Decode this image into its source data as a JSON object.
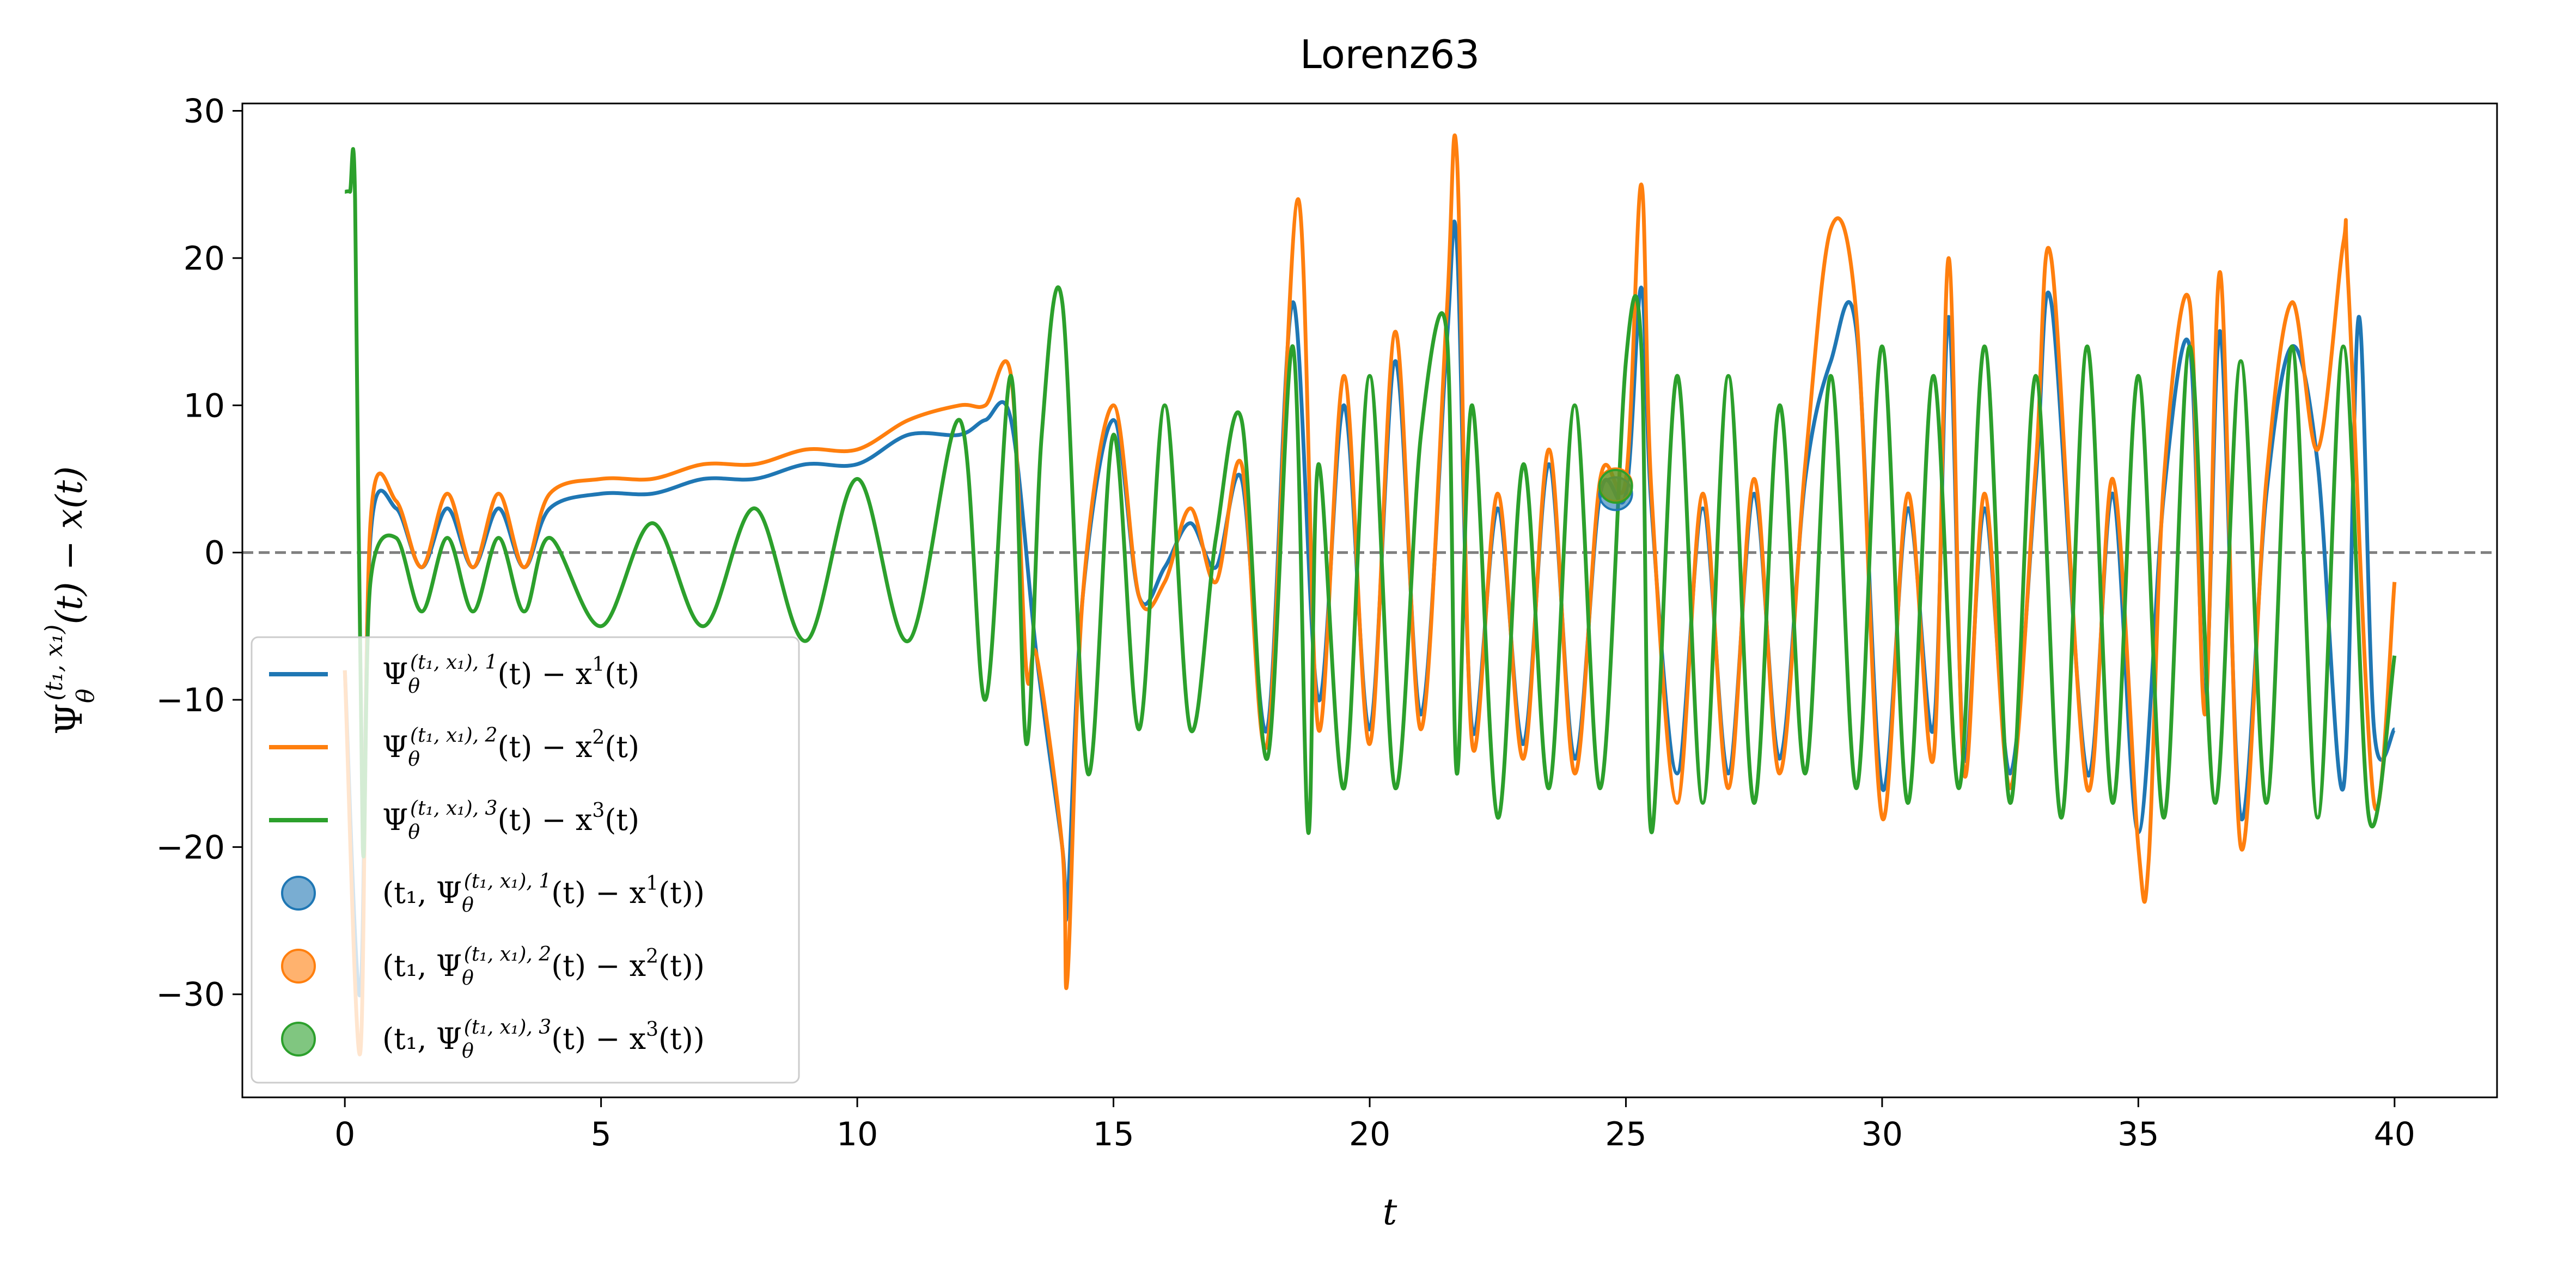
{
  "chart_data": {
    "type": "line",
    "title": "Lorenz63",
    "xlabel": "t",
    "ylabel_parts": {
      "base": "Ψ",
      "sub": "θ",
      "sup": "(t₁, x₁)",
      "rest": "(t) − x(t)"
    },
    "xlim": [
      -2.0,
      42.0
    ],
    "ylim": [
      -37.0,
      30.5
    ],
    "x_ticks": [
      0,
      5,
      10,
      15,
      20,
      25,
      30,
      35,
      40
    ],
    "y_ticks": [
      -30,
      -20,
      -10,
      0,
      10,
      20,
      30
    ],
    "x_tick_labels": [
      "0",
      "5",
      "10",
      "15",
      "20",
      "25",
      "30",
      "35",
      "40"
    ],
    "y_tick_labels": [
      "−30",
      "−20",
      "−10",
      "0",
      "10",
      "20",
      "30"
    ],
    "grid": false,
    "reference_line": {
      "y": 0,
      "style": "dashed",
      "color": "#808080"
    },
    "legend_position": "lower-left",
    "colors": {
      "series1": "#1f77b4",
      "series2": "#ff7f0e",
      "series3": "#2ca02c"
    },
    "series": [
      {
        "name": "Ψθ^{(t1,x1),1}(t) − x¹(t)",
        "color": "#1f77b4",
        "x": [
          0.0,
          0.3,
          0.5,
          1.0,
          1.5,
          2.0,
          2.5,
          3.0,
          3.5,
          4.0,
          5.0,
          6.0,
          7.0,
          8.0,
          9.0,
          10.0,
          11.0,
          12.0,
          12.5,
          13.0,
          13.5,
          14.0,
          14.1,
          14.4,
          15.0,
          15.5,
          16.0,
          16.5,
          17.0,
          17.5,
          18.0,
          18.5,
          19.0,
          19.5,
          20.0,
          20.5,
          21.0,
          21.5,
          21.7,
          22.0,
          22.5,
          23.0,
          23.5,
          24.0,
          24.5,
          25.0,
          25.3,
          25.5,
          26.0,
          26.5,
          27.0,
          27.5,
          28.0,
          28.5,
          29.0,
          29.5,
          30.0,
          30.5,
          31.0,
          31.3,
          31.6,
          32.0,
          32.5,
          33.0,
          33.3,
          34.0,
          34.5,
          35.0,
          35.5,
          36.0,
          36.3,
          36.6,
          37.0,
          37.5,
          38.0,
          38.5,
          39.0,
          39.3,
          39.6,
          40.0
        ],
        "y": [
          -8,
          -30,
          1,
          3,
          -1,
          3,
          -1,
          3,
          -1,
          3,
          4,
          4,
          5,
          5,
          6,
          6,
          8,
          8,
          9,
          9,
          -7,
          -20,
          -24,
          -3,
          9,
          -3,
          -1,
          2,
          -1,
          5,
          -12,
          17,
          -10,
          10,
          -12,
          13,
          -11,
          14,
          21,
          -12,
          3,
          -13,
          6,
          -14,
          4,
          4,
          18,
          3,
          -15,
          3,
          -15,
          4,
          -14,
          5,
          13,
          15,
          -16,
          3,
          -12,
          16,
          -14,
          3,
          -15,
          5,
          17,
          -15,
          4,
          -19,
          4,
          14,
          -10,
          15,
          -18,
          4,
          14,
          6,
          -16,
          16,
          -12,
          -12
        ]
      },
      {
        "name": "Ψθ^{(t1,x1),2}(t) − x²(t)",
        "color": "#ff7f0e",
        "x": [
          0.0,
          0.3,
          0.5,
          1.0,
          1.5,
          2.0,
          2.5,
          3.0,
          3.5,
          4.0,
          5.0,
          6.0,
          7.0,
          8.0,
          9.0,
          10.0,
          11.0,
          12.0,
          12.5,
          13.0,
          13.3,
          13.5,
          14.0,
          14.1,
          14.4,
          15.0,
          15.5,
          16.0,
          16.5,
          17.0,
          17.5,
          18.0,
          18.6,
          19.0,
          19.5,
          20.0,
          20.5,
          21.0,
          21.5,
          21.7,
          22.0,
          22.5,
          23.0,
          23.5,
          24.0,
          24.5,
          25.0,
          25.3,
          25.5,
          26.0,
          26.5,
          27.0,
          27.5,
          28.0,
          28.5,
          29.0,
          29.5,
          30.0,
          30.5,
          31.0,
          31.3,
          31.6,
          32.0,
          32.5,
          33.0,
          33.3,
          34.0,
          34.5,
          35.0,
          35.2,
          35.5,
          36.0,
          36.3,
          36.6,
          37.0,
          37.5,
          38.0,
          38.5,
          39.0,
          39.1,
          39.6,
          40.0
        ],
        "y": [
          -8,
          -34,
          2,
          3.5,
          -1,
          4,
          -1,
          4,
          -1,
          4,
          5,
          5,
          6,
          6,
          7,
          7,
          9,
          10,
          10,
          12,
          -8,
          -7,
          -20,
          -29,
          -3,
          10,
          -3,
          -2,
          3,
          -2,
          6,
          -13,
          24,
          -12,
          12,
          -13,
          15,
          -12,
          16,
          27,
          -13,
          4,
          -14,
          7,
          -15,
          5,
          5,
          25,
          4,
          -17,
          4,
          -16,
          5,
          -15,
          6,
          22,
          16,
          -18,
          4,
          -14,
          20,
          -15,
          4,
          -16,
          6,
          20,
          -16,
          5,
          -20,
          -21,
          5,
          17,
          -11,
          19,
          -20,
          5,
          17,
          7,
          21,
          18,
          -17,
          -2
        ]
      },
      {
        "name": "Ψθ^{(t1,x1),3}(t) − x³(t)",
        "color": "#2ca02c",
        "x": [
          0.0,
          0.1,
          0.2,
          0.35,
          0.5,
          1.0,
          1.5,
          2.0,
          2.5,
          3.0,
          3.5,
          4.0,
          5.0,
          6.0,
          7.0,
          8.0,
          9.0,
          10.0,
          11.0,
          12.0,
          12.5,
          13.0,
          13.3,
          13.6,
          14.0,
          14.5,
          15.0,
          15.5,
          16.0,
          16.5,
          17.0,
          17.5,
          18.0,
          18.5,
          18.8,
          19.0,
          19.5,
          20.0,
          20.5,
          21.0,
          21.5,
          21.7,
          22.0,
          22.5,
          23.0,
          23.5,
          24.0,
          24.5,
          25.0,
          25.3,
          25.5,
          26.0,
          26.5,
          27.0,
          27.5,
          28.0,
          28.5,
          29.0,
          29.5,
          30.0,
          30.5,
          31.0,
          31.5,
          32.0,
          32.5,
          33.0,
          33.5,
          34.0,
          34.5,
          35.0,
          35.5,
          36.0,
          36.5,
          37.0,
          37.5,
          38.0,
          38.5,
          39.0,
          39.5,
          40.0
        ],
        "y": [
          24.5,
          24.5,
          24,
          -20,
          -2,
          1,
          -4,
          1,
          -4,
          1,
          -4,
          1,
          -5,
          2,
          -5,
          3,
          -6,
          5,
          -6,
          9,
          -10,
          12,
          -13,
          8,
          17,
          -15,
          8,
          -12,
          10,
          -12,
          1,
          9,
          -14,
          14,
          -19,
          6,
          -16,
          12,
          -16,
          8,
          15,
          -15,
          10,
          -18,
          6,
          -16,
          10,
          -16,
          13,
          14,
          -19,
          12,
          -17,
          12,
          -17,
          10,
          -15,
          12,
          -16,
          14,
          -17,
          12,
          -16,
          14,
          -17,
          12,
          -18,
          14,
          -17,
          12,
          -18,
          14,
          -17,
          13,
          -17,
          14,
          -18,
          14,
          -18,
          -7
        ]
      }
    ],
    "markers": [
      {
        "label": "(t₁, Ψθ^{(t1,x1),1}(t) − x¹(t))",
        "x": 24.8,
        "y": 4.0,
        "color": "#1f77b4"
      },
      {
        "label": "(t₁, Ψθ^{(t1,x1),2}(t) − x²(t))",
        "x": 24.8,
        "y": 4.6,
        "color": "#ff7f0e"
      },
      {
        "label": "(t₁, Ψθ^{(t1,x1),3}(t) − x³(t))",
        "x": 24.8,
        "y": 4.5,
        "color": "#2ca02c"
      }
    ],
    "legend": [
      {
        "kind": "line",
        "color": "#1f77b4",
        "main": "Ψ",
        "sub": "θ",
        "sup": "(t₁, x₁), 1",
        "rest": "(t) − x",
        "rest_sup": "1",
        "rest2": "(t)"
      },
      {
        "kind": "line",
        "color": "#ff7f0e",
        "main": "Ψ",
        "sub": "θ",
        "sup": "(t₁, x₁), 2",
        "rest": "(t) − x",
        "rest_sup": "2",
        "rest2": "(t)"
      },
      {
        "kind": "line",
        "color": "#2ca02c",
        "main": "Ψ",
        "sub": "θ",
        "sup": "(t₁, x₁), 3",
        "rest": "(t) − x",
        "rest_sup": "3",
        "rest2": "(t)"
      },
      {
        "kind": "marker",
        "color": "#1f77b4",
        "main": "(t₁, Ψ",
        "sub": "θ",
        "sup": "(t₁, x₁), 1",
        "rest": "(t) − x",
        "rest_sup": "1",
        "rest2": "(t))"
      },
      {
        "kind": "marker",
        "color": "#ff7f0e",
        "main": "(t₁, Ψ",
        "sub": "θ",
        "sup": "(t₁, x₁), 2",
        "rest": "(t) − x",
        "rest_sup": "2",
        "rest2": "(t))"
      },
      {
        "kind": "marker",
        "color": "#2ca02c",
        "main": "(t₁, Ψ",
        "sub": "θ",
        "sup": "(t₁, x₁), 3",
        "rest": "(t) − x",
        "rest_sup": "3",
        "rest2": "(t))"
      }
    ]
  }
}
